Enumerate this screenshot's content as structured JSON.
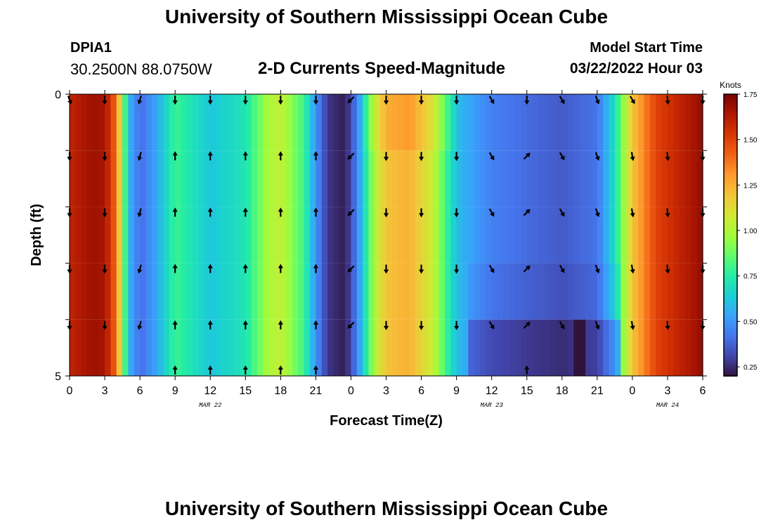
{
  "header": {
    "title": "University of Southern Mississippi Ocean Cube",
    "station": "DPIA1",
    "coords": "30.2500N  88.0750W",
    "subtitle": "2-D Currents Speed-Magnitude",
    "start_label": "Model Start Time",
    "start_value": "03/22/2022 Hour 03"
  },
  "footer": {
    "title": "University of Southern Mississippi Ocean Cube"
  },
  "chart_data": {
    "type": "heatmap",
    "title": "2-D Currents Speed-Magnitude",
    "xlabel": "Forecast Time(Z)",
    "ylabel": "Depth (ft)",
    "x_range": [
      0,
      54
    ],
    "y_range": [
      0,
      5
    ],
    "x_ticks": [
      "0",
      "3",
      "6",
      "9",
      "12",
      "15",
      "18",
      "21",
      "0",
      "3",
      "6",
      "9",
      "12",
      "15",
      "18",
      "21",
      "0",
      "3",
      "6"
    ],
    "y_ticks": [
      "0",
      "5"
    ],
    "date_labels": [
      {
        "text": "MAR 22",
        "hour": 12
      },
      {
        "text": "MAR 23",
        "hour": 36
      },
      {
        "text": "MAR 24",
        "hour": 51
      }
    ],
    "colorbar": {
      "label": "Knots",
      "range": [
        0.2,
        1.75
      ],
      "ticks": [
        "0.25",
        "0.50",
        "0.75",
        "1.00",
        "1.25",
        "1.50",
        "1.75"
      ],
      "colors": [
        "#30123b",
        "#4145ab",
        "#4675ed",
        "#39a2fc",
        "#1bcfd4",
        "#24eca6",
        "#61fc6c",
        "#a4fc3b",
        "#d1e834",
        "#f3c63a",
        "#fe9b2d",
        "#f36315",
        "#d93806",
        "#b11901",
        "#7a0403"
      ]
    },
    "depth_rows": [
      0.5,
      1.5,
      2.5,
      3.5,
      4.5
    ],
    "speed_profile": [
      {
        "h": 0,
        "s": 1.6
      },
      {
        "h": 2,
        "s": 1.68
      },
      {
        "h": 3,
        "s": 1.66
      },
      {
        "h": 4,
        "s": 1.4
      },
      {
        "h": 5,
        "s": 0.6
      },
      {
        "h": 6,
        "s": 0.4
      },
      {
        "h": 7.5,
        "s": 0.55
      },
      {
        "h": 9,
        "s": 0.8
      },
      {
        "h": 12,
        "s": 0.62
      },
      {
        "h": 15,
        "s": 0.72
      },
      {
        "h": 17,
        "s": 1.0
      },
      {
        "h": 18,
        "s": 1.05
      },
      {
        "h": 20,
        "s": 0.8
      },
      {
        "h": 21,
        "s": 0.5
      },
      {
        "h": 22,
        "s": 0.28
      },
      {
        "h": 23.5,
        "s": 0.22
      },
      {
        "h": 24.5,
        "s": 0.45
      },
      {
        "h": 26,
        "s": 1.0
      },
      {
        "h": 27,
        "s": 1.2
      },
      {
        "h": 29,
        "s": 1.25
      },
      {
        "h": 31,
        "s": 1.05
      },
      {
        "h": 33,
        "s": 0.6
      },
      {
        "h": 36,
        "s": 0.45
      },
      {
        "h": 39,
        "s": 0.4
      },
      {
        "h": 42,
        "s": 0.36
      },
      {
        "h": 45,
        "s": 0.42
      },
      {
        "h": 46.5,
        "s": 0.7
      },
      {
        "h": 48,
        "s": 1.2
      },
      {
        "h": 50,
        "s": 1.5
      },
      {
        "h": 54,
        "s": 1.7
      }
    ],
    "arrow_hours": [
      0,
      3,
      6,
      9,
      12,
      15,
      18,
      21,
      24,
      27,
      30,
      33,
      36,
      39,
      42,
      45,
      48,
      51,
      54
    ],
    "arrow_directions_deg": [
      180,
      180,
      195,
      0,
      0,
      0,
      0,
      0,
      225,
      180,
      180,
      180,
      150,
      45,
      150,
      160,
      170,
      175,
      180
    ],
    "surface_row_directions_deg": [
      160,
      180,
      195,
      180,
      180,
      180,
      180,
      180,
      225,
      180,
      180,
      180,
      150,
      180,
      150,
      160,
      150,
      175,
      180
    ],
    "bottom_row_arrow_hours": [
      9,
      12,
      15,
      18,
      21,
      39
    ],
    "bottom_row_directions_deg": [
      0,
      0,
      0,
      0,
      0,
      0
    ],
    "dark_cell": {
      "hour": 43.5,
      "depth": 4.5,
      "speed": 0.2
    }
  }
}
